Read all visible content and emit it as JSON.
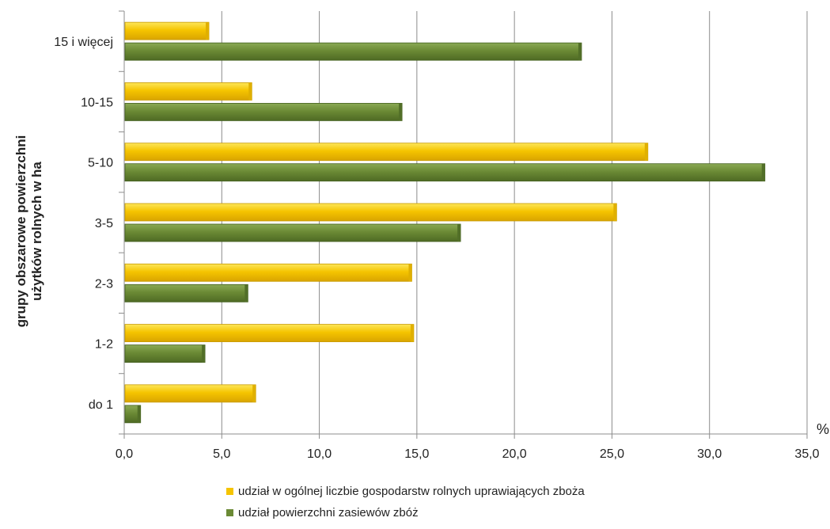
{
  "chart_data": {
    "type": "bar",
    "orientation": "horizontal",
    "categories": [
      "do 1",
      "1-2",
      "2-3",
      "3-5",
      "5-10",
      "10-15",
      "15 i więcej"
    ],
    "series": [
      {
        "name": "udział w ogólnej liczbie gospodarstw rolnych uprawiających zboża",
        "color": "#f5c400",
        "values": [
          6.7,
          14.8,
          14.7,
          25.2,
          26.8,
          6.5,
          4.3
        ]
      },
      {
        "name": "udział powierzchni zasiewów zbóż",
        "color": "#6b8a35",
        "values": [
          0.8,
          4.1,
          6.3,
          17.2,
          32.8,
          14.2,
          23.4
        ]
      }
    ],
    "xlim": [
      0,
      35
    ],
    "xticks": [
      "0,0",
      "5,0",
      "10,0",
      "15,0",
      "20,0",
      "25,0",
      "30,0",
      "35,0"
    ],
    "xunit": "%",
    "ylabel_line1": "grupy obszarowe powierzchni",
    "ylabel_line2": "użytków rolnych w ha",
    "grid": true,
    "legend_position": "bottom"
  }
}
